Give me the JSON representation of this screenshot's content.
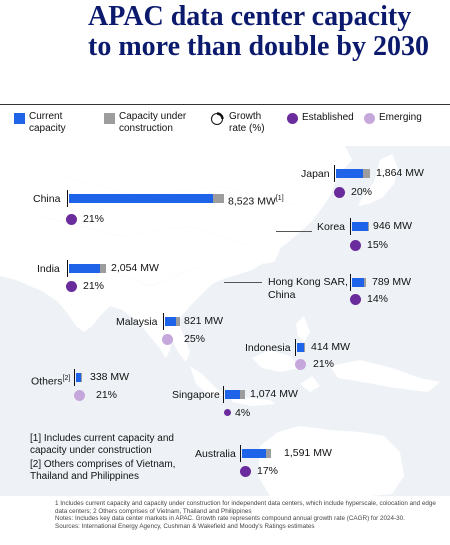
{
  "title": "APAC data center capacity to more than double by 2030",
  "colors": {
    "current": "#1f63e8",
    "construction": "#9d9d9d",
    "established": "#6a2b9c",
    "emerging": "#c6a7dc"
  },
  "legend": {
    "current": "Current capacity",
    "construction": "Capacity under construction",
    "growth": "Growth rate (%)",
    "established": "Established",
    "emerging": "Emerging"
  },
  "chart_data": {
    "type": "bar",
    "unit": "MW",
    "series": [
      {
        "name": "Current capacity",
        "values": [
          7900,
          1500,
          1700,
          880,
          680,
          620,
          370,
          280,
          820,
          1310
        ]
      },
      {
        "name": "Capacity under construction",
        "values": [
          623,
          364,
          354,
          66,
          109,
          201,
          44,
          58,
          254,
          281
        ]
      }
    ],
    "categories": [
      "China",
      "Japan",
      "India",
      "Korea",
      "Hong Kong SAR, China",
      "Malaysia",
      "Indonesia",
      "Others",
      "Singapore",
      "Australia"
    ]
  },
  "markets": [
    {
      "label": "China",
      "sup": "",
      "total": "8,523 MW",
      "total_sup": "[1]",
      "growth": "21%",
      "type": "established"
    },
    {
      "label": "Japan",
      "sup": "",
      "total": "1,864 MW",
      "total_sup": "",
      "growth": "20%",
      "type": "established"
    },
    {
      "label": "India",
      "sup": "",
      "total": "2,054 MW",
      "total_sup": "",
      "growth": "21%",
      "type": "established"
    },
    {
      "label": "Korea",
      "sup": "",
      "total": "946 MW",
      "total_sup": "",
      "growth": "15%",
      "type": "established"
    },
    {
      "label": "Hong Kong SAR, China",
      "sup": "",
      "total": "789 MW",
      "total_sup": "",
      "growth": "14%",
      "type": "established"
    },
    {
      "label": "Malaysia",
      "sup": "",
      "total": "821 MW",
      "total_sup": "",
      "growth": "25%",
      "type": "emerging"
    },
    {
      "label": "Indonesia",
      "sup": "",
      "total": "414 MW",
      "total_sup": "",
      "growth": "21%",
      "type": "emerging"
    },
    {
      "label": "Others",
      "sup": "[2]",
      "total": "338 MW",
      "total_sup": "",
      "growth": "21%",
      "type": "emerging"
    },
    {
      "label": "Singapore",
      "sup": "",
      "total": "1,074 MW",
      "total_sup": "",
      "growth": "4%",
      "type": "established"
    },
    {
      "label": "Australia",
      "sup": "",
      "total": "1,591 MW",
      "total_sup": "",
      "growth": "17%",
      "type": "established"
    }
  ],
  "notes": {
    "n1": "[1] Includes current capacity and capacity under construction",
    "n2": "[2] Others comprises of Vietnam, Thailand and Philippines"
  },
  "footer": [
    "1 Includes current capacity and capacity under construction for independent data centers, which include hyperscale, colocation and edge data centers; 2 Others comprises of Vietnam, Thailand and Philippines",
    "Notes: Includes key data center markets in APAC. Growth rate represents compound annual growth rate (CAGR) for 2024-30.",
    "Sources: International Energy Agency, Cushman & Wakefield and Moody's Ratings estimates"
  ]
}
